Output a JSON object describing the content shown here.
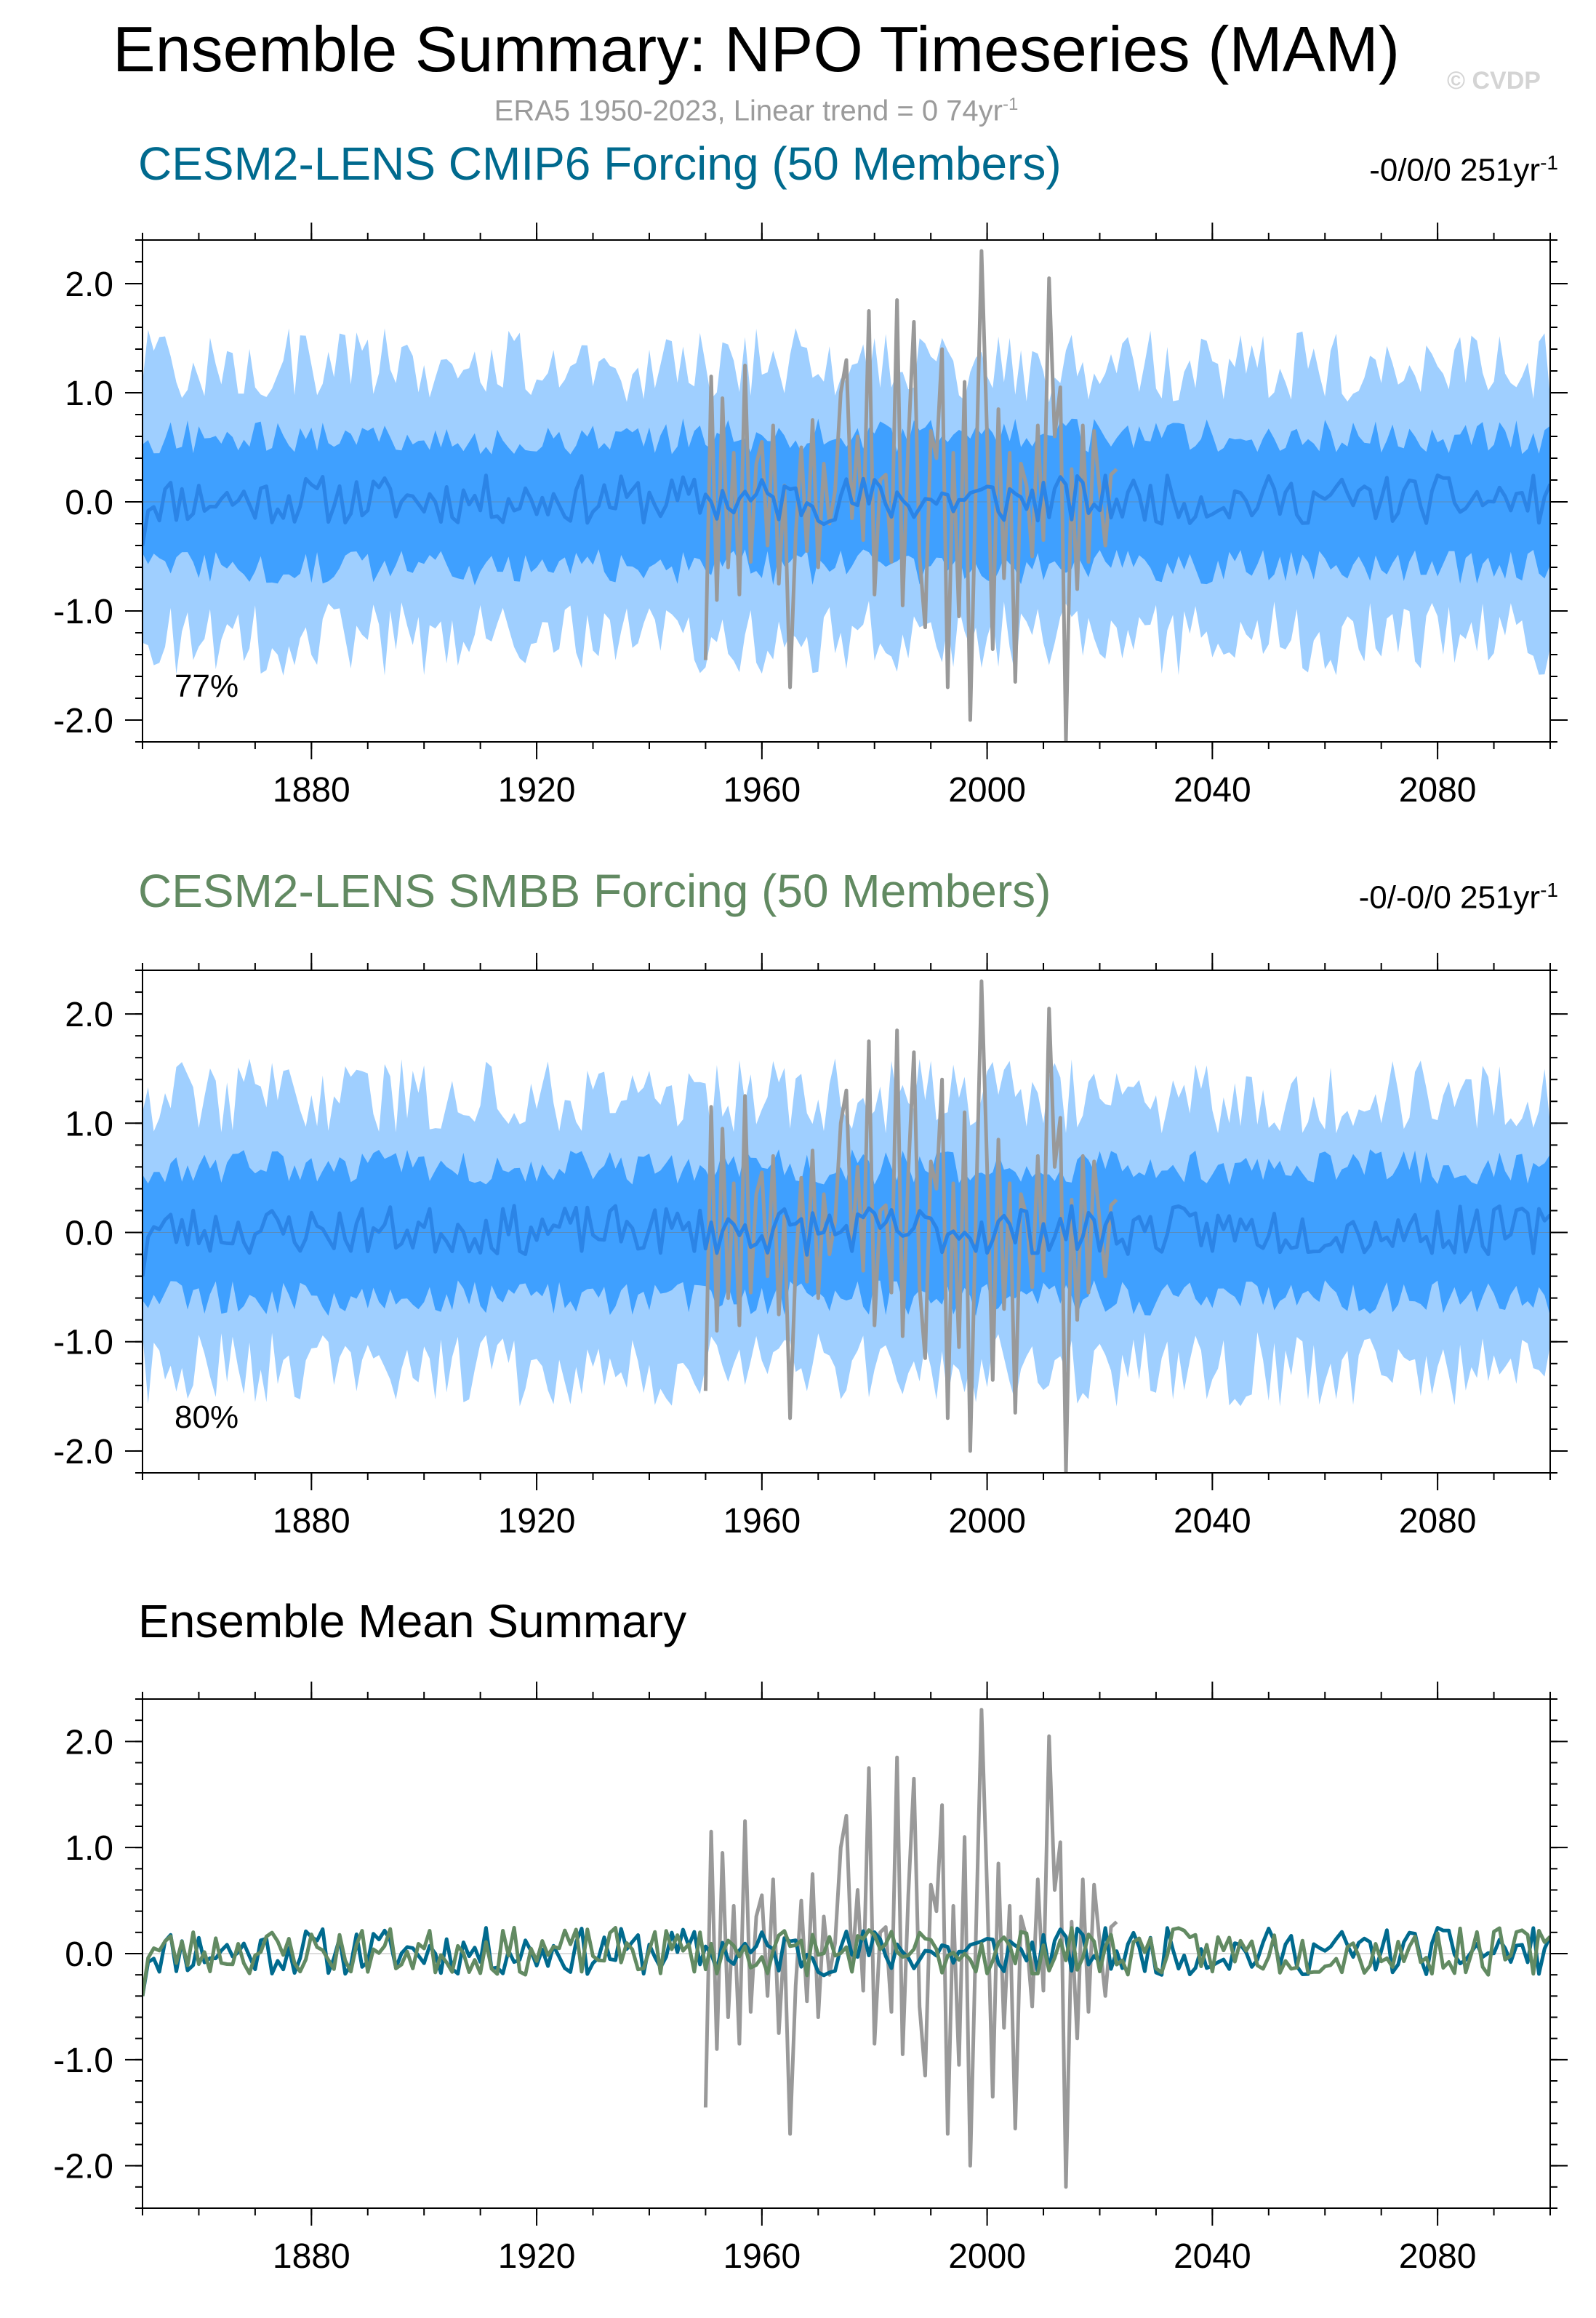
{
  "title": "Ensemble Summary: NPO Timeseries (MAM)",
  "watermark": "© CVDP",
  "subtitle": {
    "text": "ERA5 1950-2023, Linear trend = 0 74yr",
    "sup": "-1"
  },
  "colors": {
    "band_outer": "#9fcfff",
    "band_inner": "#3fa0ff",
    "ens_mean_panel": "#2b84e6",
    "obs": "#999999",
    "cmip6": "#006a8e",
    "smbb": "#628a62"
  },
  "chart_data": [
    {
      "type": "area",
      "title": "CESM2-LENS CMIP6 Forcing (50 Members)",
      "title_color": "#006a8e",
      "trend_label": "-0/0/0 251yr",
      "trend_sup": "-1",
      "percent_label": "77%",
      "xlim": [
        1850,
        2100
      ],
      "ylim": [
        -2.2,
        2.4
      ],
      "xticks": [
        1880,
        1920,
        1960,
        2000,
        2040,
        2080
      ],
      "yticks": [
        -2.0,
        -1.0,
        0.0,
        1.0,
        2.0
      ],
      "ytick_labels": [
        "-2.0",
        "-1.0",
        "0.0",
        "1.0",
        "2.0"
      ],
      "series": [
        {
          "name": "ensemble spread (outer)",
          "kind": "band",
          "lower_mean": -1.25,
          "upper_mean": 1.25
        },
        {
          "name": "ensemble spread (inner)",
          "kind": "band",
          "lower_mean": -0.6,
          "upper_mean": 0.6
        },
        {
          "name": "ensemble mean",
          "kind": "line",
          "seed": 11
        },
        {
          "name": "ERA5",
          "kind": "obs",
          "x_range": [
            1950,
            2023
          ]
        }
      ]
    },
    {
      "type": "area",
      "title": "CESM2-LENS SMBB Forcing (50 Members)",
      "title_color": "#628a62",
      "trend_label": "-0/-0/0 251yr",
      "trend_sup": "-1",
      "percent_label": "80%",
      "xlim": [
        1850,
        2100
      ],
      "ylim": [
        -2.2,
        2.4
      ],
      "xticks": [
        1880,
        1920,
        1960,
        2000,
        2040,
        2080
      ],
      "yticks": [
        -2.0,
        -1.0,
        0.0,
        1.0,
        2.0
      ],
      "ytick_labels": [
        "-2.0",
        "-1.0",
        "0.0",
        "1.0",
        "2.0"
      ],
      "series": [
        {
          "name": "ensemble spread (outer)",
          "kind": "band",
          "lower_mean": -1.25,
          "upper_mean": 1.25
        },
        {
          "name": "ensemble spread (inner)",
          "kind": "band",
          "lower_mean": -0.6,
          "upper_mean": 0.6
        },
        {
          "name": "ensemble mean",
          "kind": "line",
          "seed": 23
        },
        {
          "name": "ERA5",
          "kind": "obs",
          "x_range": [
            1950,
            2023
          ]
        }
      ]
    },
    {
      "type": "line",
      "title": "Ensemble Mean Summary",
      "title_color": "#000000",
      "xlim": [
        1850,
        2100
      ],
      "ylim": [
        -2.4,
        2.4
      ],
      "xticks": [
        1880,
        1920,
        1960,
        2000,
        2040,
        2080
      ],
      "yticks": [
        -2.0,
        -1.0,
        0.0,
        1.0,
        2.0
      ],
      "ytick_labels": [
        "-2.0",
        "-1.0",
        "0.0",
        "1.0",
        "2.0"
      ],
      "series": [
        {
          "name": "ERA5",
          "kind": "obs",
          "x_range": [
            1950,
            2023
          ]
        },
        {
          "name": "CESM2-LENS CMIP6 Forcing",
          "kind": "line",
          "seed": 11
        },
        {
          "name": "CESM2-LENS SMBB Forcing",
          "kind": "line",
          "seed": 23
        }
      ]
    }
  ],
  "obs_series": {
    "x_start": 1950,
    "values": [
      -1.45,
      1.15,
      -0.9,
      0.95,
      -0.6,
      0.45,
      -0.85,
      1.25,
      -0.55,
      0.35,
      0.55,
      -0.4,
      0.7,
      -0.75,
      0.15,
      -1.7,
      -0.3,
      0.5,
      -0.45,
      0.75,
      -0.6,
      0.35,
      -0.2,
      0.1,
      1.0,
      1.3,
      -0.15,
      0.6,
      -0.35,
      1.75,
      -0.85,
      0.2,
      0.25,
      -0.55,
      1.85,
      -0.95,
      0.55,
      1.65,
      -0.5,
      -1.15,
      0.65,
      0.4,
      1.4,
      -1.7,
      0.45,
      -1.05,
      1.1,
      -2.0,
      0.15,
      2.3,
      0.6,
      -1.35,
      0.85,
      -0.7,
      0.45,
      -1.65,
      0.35,
      0.15,
      -0.5,
      0.7,
      -0.35,
      2.05,
      0.6,
      1.05,
      -2.2,
      0.3,
      -0.8,
      0.7,
      -0.55,
      0.65,
      0.1,
      -0.4,
      0.25,
      0.3
    ]
  }
}
